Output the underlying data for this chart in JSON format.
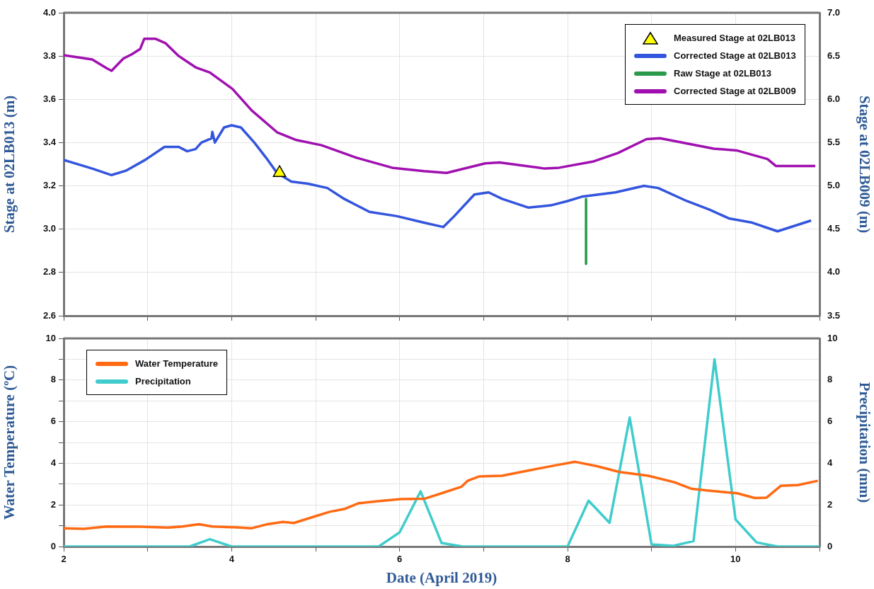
{
  "chart_data": [
    {
      "type": "line",
      "ylabel": "Stage at 02LB013 (m)",
      "y2label": "Stage at 02LB009 (m)",
      "xlim": [
        2,
        11
      ],
      "xticks": [
        2,
        3,
        4,
        5,
        6,
        7,
        8,
        9,
        10,
        11
      ],
      "ylim": [
        2.6,
        4.0
      ],
      "yticks": [
        2.6,
        2.8,
        {
          "value": 3,
          "label": "3.0"
        },
        3.2,
        3.4,
        3.6,
        3.8,
        {
          "value": 4,
          "label": "4.0"
        }
      ],
      "y2lim": [
        3.5,
        7.0
      ],
      "y2ticks": [
        3.5,
        {
          "value": 4,
          "label": "4.0"
        },
        4.5,
        {
          "value": 5,
          "label": "5.0"
        },
        5.5,
        {
          "value": 6,
          "label": "6.0"
        },
        6.5,
        {
          "value": 7,
          "label": "7.0"
        }
      ],
      "grid": true,
      "legend": "top right",
      "tick_labels": "y",
      "series": [
        {
          "name": "Measured Stage at 02LB013",
          "type": "scatter",
          "marker": "triangle",
          "color": "#ffff00",
          "x": [
            4.57
          ],
          "values": [
            3.26
          ]
        },
        {
          "name": "Corrected Stage at 02LB013",
          "type": "line",
          "color": "#3355dd",
          "x": [
            2.0,
            2.34,
            2.57,
            2.74,
            2.97,
            3.2,
            3.37,
            3.47,
            3.57,
            3.64,
            3.76,
            3.77,
            3.8,
            3.91,
            4.0,
            4.11,
            4.27,
            4.41,
            4.54,
            4.71,
            4.91,
            5.14,
            5.34,
            5.64,
            5.97,
            6.29,
            6.52,
            6.65,
            6.89,
            7.06,
            7.22,
            7.53,
            7.8,
            8.0,
            8.17,
            8.57,
            8.91,
            9.08,
            9.42,
            9.69,
            9.92,
            10.2,
            10.5,
            10.9
          ],
          "values": [
            3.32,
            3.28,
            3.25,
            3.27,
            3.32,
            3.38,
            3.38,
            3.36,
            3.37,
            3.4,
            3.42,
            3.45,
            3.4,
            3.47,
            3.48,
            3.47,
            3.4,
            3.33,
            3.26,
            3.22,
            3.21,
            3.19,
            3.14,
            3.08,
            3.06,
            3.03,
            3.01,
            3.06,
            3.16,
            3.17,
            3.14,
            3.1,
            3.11,
            3.13,
            3.15,
            3.17,
            3.2,
            3.19,
            3.13,
            3.09,
            3.05,
            3.03,
            2.99,
            3.04
          ]
        },
        {
          "name": "Raw Stage at 02LB013",
          "type": "line",
          "color": "#2a9a4a",
          "x": [
            8.22,
            8.22
          ],
          "values": [
            3.14,
            2.84
          ]
        },
        {
          "name": "Corrected Stage at 02LB009",
          "type": "line",
          "axis": "y2",
          "color": "#a010b0",
          "x": [
            2.0,
            2.34,
            2.51,
            2.57,
            2.71,
            2.81,
            2.91,
            2.96,
            3.09,
            3.21,
            3.37,
            3.57,
            3.74,
            4.01,
            4.24,
            4.54,
            4.77,
            5.07,
            5.47,
            5.91,
            6.29,
            6.56,
            7.02,
            7.19,
            7.73,
            7.9,
            8.3,
            8.6,
            8.94,
            9.1,
            9.74,
            10.01,
            10.38,
            10.48,
            10.95
          ],
          "values": [
            6.51,
            6.46,
            6.36,
            6.33,
            6.47,
            6.52,
            6.58,
            6.7,
            6.7,
            6.65,
            6.5,
            6.37,
            6.31,
            6.12,
            5.87,
            5.62,
            5.53,
            5.47,
            5.33,
            5.21,
            5.17,
            5.15,
            5.26,
            5.27,
            5.2,
            5.21,
            5.28,
            5.38,
            5.54,
            5.55,
            5.43,
            5.41,
            5.31,
            5.23,
            5.23
          ]
        }
      ]
    },
    {
      "type": "line",
      "xlabel": "Date (April 2019)",
      "ylabel": "Water Temperature (ºC)",
      "y2label": "Precipitation (mm)",
      "xlim": [
        2,
        11
      ],
      "xticks": [
        2,
        {
          "value": 3,
          "label": null
        },
        4,
        {
          "value": 5,
          "label": null
        },
        6,
        {
          "value": 7,
          "label": null
        },
        8,
        {
          "value": 9,
          "label": null
        },
        10,
        {
          "value": 11,
          "label": null
        }
      ],
      "ylim": [
        0,
        10
      ],
      "yticks": [
        0,
        {
          "value": 1,
          "label": null
        },
        2,
        {
          "value": 3,
          "label": null
        },
        4,
        {
          "value": 5,
          "label": null
        },
        6,
        {
          "value": 7,
          "label": null
        },
        8,
        {
          "value": 9,
          "label": null
        },
        10
      ],
      "y2lim": [
        0,
        10
      ],
      "y2ticks": [
        0,
        2,
        4,
        6,
        8,
        10
      ],
      "grid": true,
      "legend": "top left",
      "series": [
        {
          "name": "Water Temperature",
          "type": "line",
          "color": "#ff6a13",
          "x": [
            2.0,
            2.24,
            2.51,
            2.91,
            3.24,
            3.41,
            3.61,
            3.77,
            4.07,
            4.24,
            4.41,
            4.61,
            4.74,
            5.01,
            5.17,
            5.34,
            5.51,
            5.74,
            6.01,
            6.3,
            6.5,
            6.74,
            6.81,
            6.95,
            7.22,
            7.53,
            7.84,
            8.09,
            8.35,
            8.62,
            8.96,
            9.27,
            9.48,
            9.72,
            10.02,
            10.23,
            10.37,
            10.54,
            10.74,
            10.98
          ],
          "values": [
            0.88,
            0.85,
            0.96,
            0.95,
            0.91,
            0.96,
            1.07,
            0.96,
            0.92,
            0.88,
            1.06,
            1.18,
            1.13,
            1.47,
            1.67,
            1.8,
            2.08,
            2.18,
            2.28,
            2.3,
            2.56,
            2.88,
            3.16,
            3.37,
            3.4,
            3.65,
            3.89,
            4.07,
            3.86,
            3.58,
            3.4,
            3.09,
            2.77,
            2.67,
            2.56,
            2.33,
            2.35,
            2.92,
            2.95,
            3.16
          ]
        },
        {
          "name": "Precipitation",
          "type": "line",
          "axis": "y2",
          "color": "#40cccc",
          "x": [
            2.0,
            3.5,
            3.74,
            4.0,
            5.75,
            6.0,
            6.25,
            6.5,
            6.75,
            8.0,
            8.25,
            8.5,
            8.74,
            9.0,
            9.25,
            9.5,
            9.75,
            10.0,
            10.25,
            10.5,
            11.0
          ],
          "values": [
            0,
            0,
            0.35,
            0,
            0,
            0.68,
            2.65,
            0.17,
            0,
            0,
            2.2,
            1.14,
            6.2,
            0.1,
            0.03,
            0.26,
            9.0,
            1.3,
            0.2,
            0,
            0
          ]
        }
      ]
    }
  ]
}
